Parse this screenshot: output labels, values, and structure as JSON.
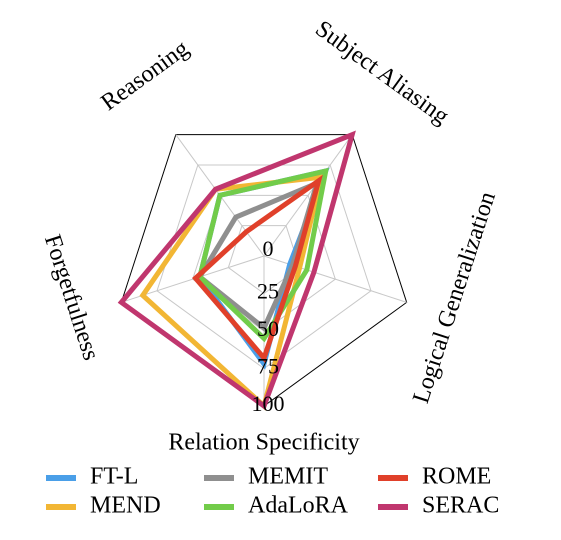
{
  "chart_data": {
    "type": "radar",
    "axes": [
      "Relation Specificity",
      "Forgetfulness",
      "Reasoning",
      "Subject Aliasing",
      "Logical Generalization"
    ],
    "ticks": [
      0,
      25,
      50,
      75,
      100
    ],
    "range": [
      0,
      100
    ],
    "grid": true,
    "legend_position": "bottom",
    "series": [
      {
        "name": "FT-L",
        "color": "#4a9fe8",
        "values": [
          72,
          45,
          50,
          70,
          18
        ]
      },
      {
        "name": "MEND",
        "color": "#f2b634",
        "values": [
          100,
          85,
          55,
          65,
          25
        ]
      },
      {
        "name": "MEMIT",
        "color": "#8f8f8f",
        "values": [
          48,
          45,
          32,
          60,
          20
        ]
      },
      {
        "name": "AdaLoRA",
        "color": "#72cc4a",
        "values": [
          55,
          45,
          50,
          70,
          30
        ]
      },
      {
        "name": "ROME",
        "color": "#e0402a",
        "values": [
          68,
          48,
          20,
          62,
          22
        ]
      },
      {
        "name": "SERAC",
        "color": "#c0366e",
        "values": [
          100,
          100,
          55,
          100,
          35
        ]
      }
    ]
  }
}
